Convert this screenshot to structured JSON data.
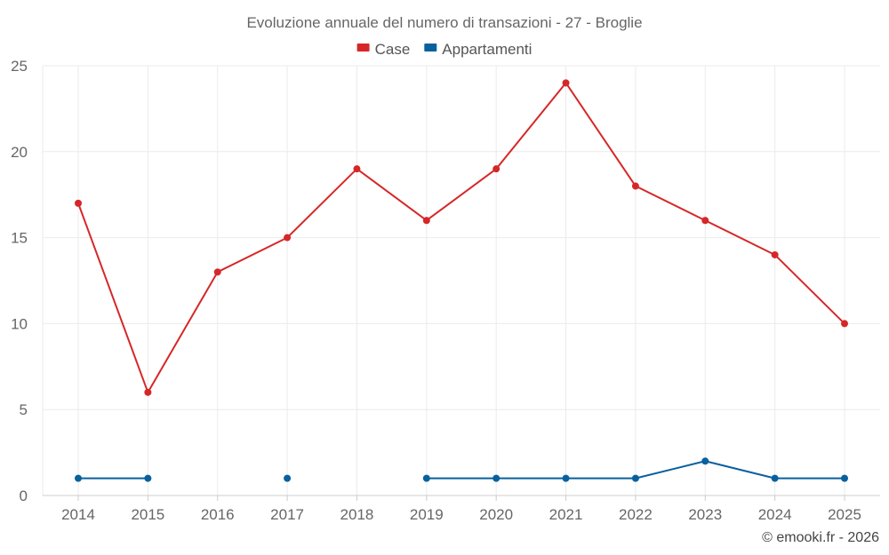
{
  "chart_data": {
    "type": "line",
    "title": "Evoluzione annuale del numero di transazioni - 27 - Broglie",
    "categories": [
      "2014",
      "2015",
      "2016",
      "2017",
      "2018",
      "2019",
      "2020",
      "2021",
      "2022",
      "2023",
      "2024",
      "2025"
    ],
    "series": [
      {
        "name": "Case",
        "color": "#d62728",
        "values": [
          17,
          6,
          13,
          15,
          19,
          16,
          19,
          24,
          18,
          16,
          14,
          10
        ]
      },
      {
        "name": "Appartamenti",
        "color": "#08619e",
        "values": [
          1,
          1,
          null,
          1,
          null,
          1,
          1,
          1,
          1,
          2,
          1,
          1
        ]
      }
    ],
    "ylim": [
      0,
      25
    ],
    "yticks": [
      0,
      5,
      10,
      15,
      20,
      25
    ],
    "grid": true,
    "legend_position": "top-center",
    "xlabel": "",
    "ylabel": ""
  },
  "credit": "© emooki.fr - 2026"
}
